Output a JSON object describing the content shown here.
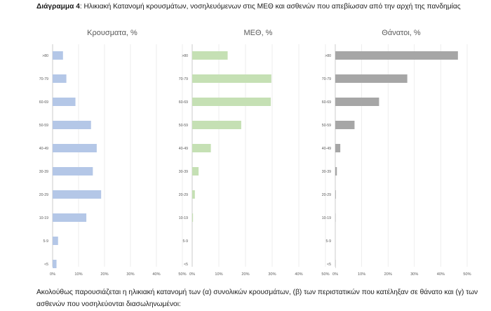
{
  "caption": {
    "prefix": "Διάγραμμα 4",
    "text": ": Ηλικιακή Κατανομή κρουσμάτων, νοσηλευόμενων στις ΜΕΘ και ασθενών που απεβίωσαν από την αρχή της πανδημίας"
  },
  "footer": {
    "text": "Ακολούθως παρουσιάζεται η ηλικιακή κατανομή των (α) συνολικών κρουσμάτων, (β) των περιστατικών που κατέληξαν σε θάνατο και (γ) των ασθενών που νοσηλεύονται διασωληνωμένοι:"
  },
  "chart_data": [
    {
      "type": "bar",
      "orientation": "horizontal",
      "title": "Κρουσματα, %",
      "categories": [
        ">80",
        "70-79",
        "60-69",
        "50-59",
        "40-49",
        "30-39",
        "20-29",
        "10-19",
        "5-9",
        "<5"
      ],
      "values": [
        4,
        5.3,
        8.8,
        14.8,
        17,
        15.5,
        18.7,
        13,
        2.1,
        1.5
      ],
      "xlim": [
        0,
        50
      ],
      "ticks": [
        "0%",
        "10%",
        "20%",
        "30%",
        "40%",
        "50%"
      ],
      "color": "#b4c7e7"
    },
    {
      "type": "bar",
      "orientation": "horizontal",
      "title": "ΜΕΘ, %",
      "categories": [
        ">80",
        "70-79",
        "60-69",
        "50-59",
        "40-49",
        "30-39",
        "20-29",
        "10-19",
        "5-9",
        "<5"
      ],
      "values": [
        13.3,
        29.7,
        29.5,
        18.4,
        7,
        2.4,
        1,
        0.3,
        0,
        0
      ],
      "xlim": [
        0,
        50
      ],
      "ticks": [
        "0%",
        "10%",
        "20%",
        "30%",
        "40%",
        "50%"
      ],
      "color": "#c5e0b4"
    },
    {
      "type": "bar",
      "orientation": "horizontal",
      "title": "Θάνατοι, %",
      "categories": [
        ">80",
        "70-79",
        "60-69",
        "50-59",
        "40-49",
        "30-39",
        "20-29",
        "10-19",
        "5-9",
        "<5"
      ],
      "values": [
        46.5,
        27.3,
        16.6,
        7.3,
        1.9,
        0.6,
        0.2,
        0.1,
        0,
        0.1
      ],
      "xlim": [
        0,
        50
      ],
      "ticks": [
        "0%",
        "10%",
        "20%",
        "30%",
        "40%",
        "50%"
      ],
      "color": "#a6a6a6"
    }
  ]
}
